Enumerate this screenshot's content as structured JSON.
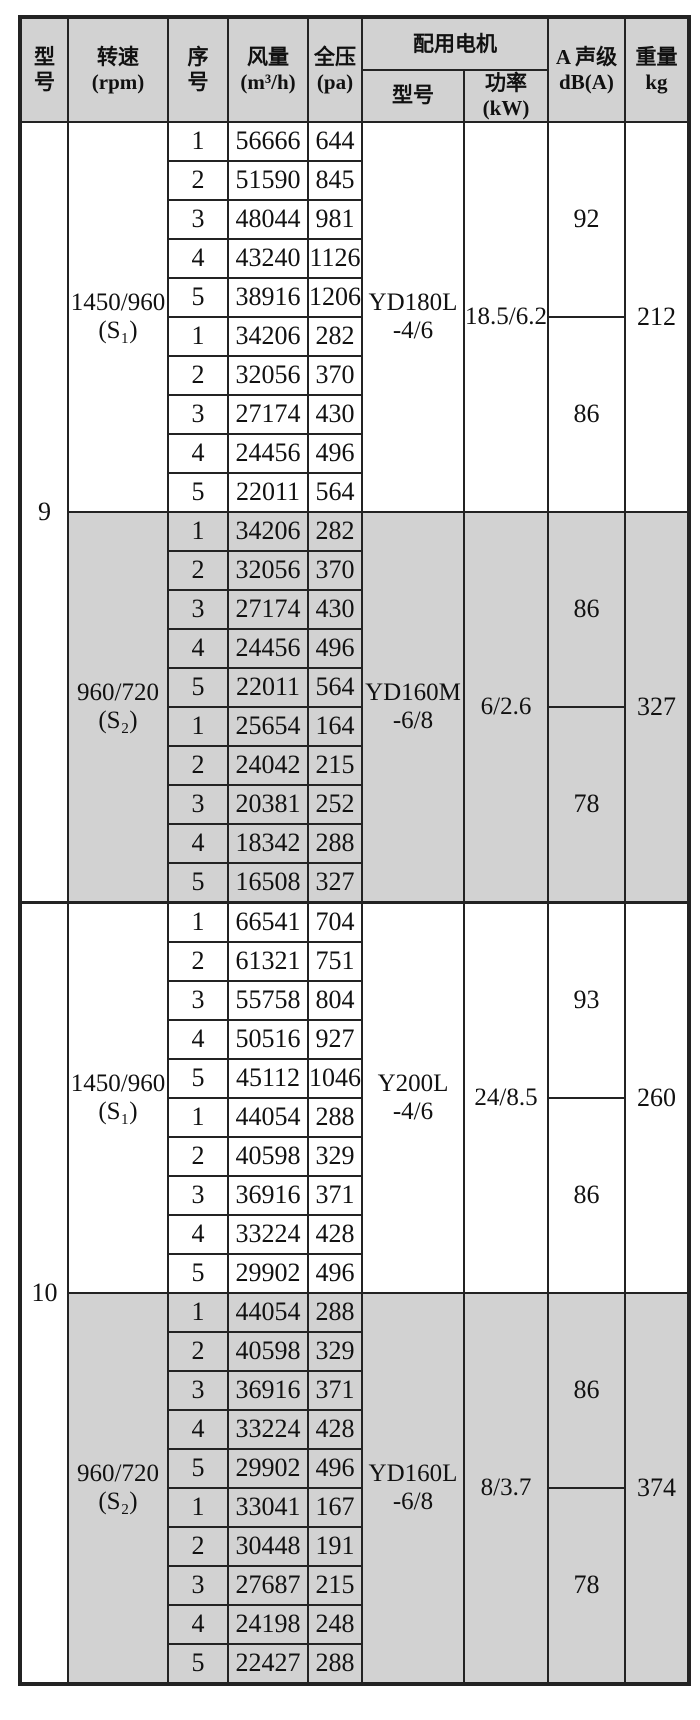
{
  "table": {
    "headers": {
      "model": "型\n号",
      "speed": "转速\n(rpm)",
      "index": "序\n号",
      "airflow": "风量\n(m³/h)",
      "pressure": "全压\n(pa)",
      "motor_group": "配用电机",
      "motor_model": "型号",
      "motor_power": "功率\n(kW)",
      "noise": "A 声级\ndB(A)",
      "weight": "重量\nkg"
    },
    "colors": {
      "shade": "#d2d2d2",
      "border": "#232323"
    },
    "sections": [
      {
        "model": "9",
        "blocks": [
          {
            "speed": "1450/960\n(S₁)",
            "shade": false,
            "rows": [
              [
                "1",
                "56666",
                "644"
              ],
              [
                "2",
                "51590",
                "845"
              ],
              [
                "3",
                "48044",
                "981"
              ],
              [
                "4",
                "43240",
                "1126"
              ],
              [
                "5",
                "38916",
                "1206"
              ],
              [
                "1",
                "34206",
                "282"
              ],
              [
                "2",
                "32056",
                "370"
              ],
              [
                "3",
                "27174",
                "430"
              ],
              [
                "4",
                "24456",
                "496"
              ],
              [
                "5",
                "22011",
                "564"
              ]
            ],
            "motor": "YD180L\n-4/6",
            "power": "18.5/6.2",
            "noise_top": "92",
            "noise_bottom": "86",
            "weight": "212"
          },
          {
            "speed": "960/720\n(S₂)",
            "shade": true,
            "rows": [
              [
                "1",
                "34206",
                "282"
              ],
              [
                "2",
                "32056",
                "370"
              ],
              [
                "3",
                "27174",
                "430"
              ],
              [
                "4",
                "24456",
                "496"
              ],
              [
                "5",
                "22011",
                "564"
              ],
              [
                "1",
                "25654",
                "164"
              ],
              [
                "2",
                "24042",
                "215"
              ],
              [
                "3",
                "20381",
                "252"
              ],
              [
                "4",
                "18342",
                "288"
              ],
              [
                "5",
                "16508",
                "327"
              ]
            ],
            "motor": "YD160M\n-6/8",
            "power": "6/2.6",
            "noise_top": "86",
            "noise_bottom": "78",
            "weight": "327"
          }
        ]
      },
      {
        "model": "10",
        "blocks": [
          {
            "speed": "1450/960\n(S₁)",
            "shade": false,
            "rows": [
              [
                "1",
                "66541",
                "704"
              ],
              [
                "2",
                "61321",
                "751"
              ],
              [
                "3",
                "55758",
                "804"
              ],
              [
                "4",
                "50516",
                "927"
              ],
              [
                "5",
                "45112",
                "1046"
              ],
              [
                "1",
                "44054",
                "288"
              ],
              [
                "2",
                "40598",
                "329"
              ],
              [
                "3",
                "36916",
                "371"
              ],
              [
                "4",
                "33224",
                "428"
              ],
              [
                "5",
                "29902",
                "496"
              ]
            ],
            "motor": "Y200L\n-4/6",
            "power": "24/8.5",
            "noise_top": "93",
            "noise_bottom": "86",
            "weight": "260"
          },
          {
            "speed": "960/720\n(S₂)",
            "shade": true,
            "rows": [
              [
                "1",
                "44054",
                "288"
              ],
              [
                "2",
                "40598",
                "329"
              ],
              [
                "3",
                "36916",
                "371"
              ],
              [
                "4",
                "33224",
                "428"
              ],
              [
                "5",
                "29902",
                "496"
              ],
              [
                "1",
                "33041",
                "167"
              ],
              [
                "2",
                "30448",
                "191"
              ],
              [
                "3",
                "27687",
                "215"
              ],
              [
                "4",
                "24198",
                "248"
              ],
              [
                "5",
                "22427",
                "288"
              ]
            ],
            "motor": "YD160L\n-6/8",
            "power": "8/3.7",
            "noise_top": "86",
            "noise_bottom": "78",
            "weight": "374"
          }
        ]
      }
    ]
  }
}
